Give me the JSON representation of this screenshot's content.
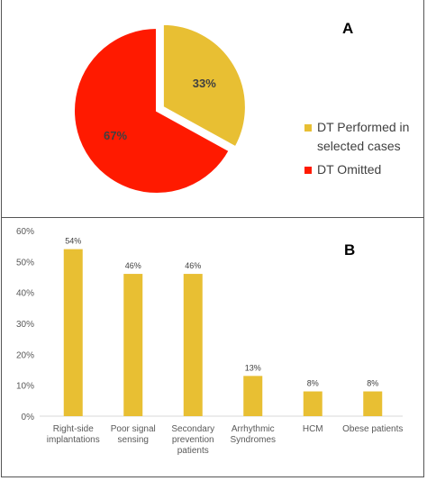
{
  "panel_a": {
    "letter": "A"
  },
  "panel_b": {
    "letter": "B"
  },
  "colors": {
    "performed": "#E8BF33",
    "omitted": "#FF1A00",
    "bar": "#E8BF33"
  },
  "chart_data": [
    {
      "type": "pie",
      "labels": [
        "DT Performed in selected cases",
        "DT Omitted"
      ],
      "legend_lines": [
        [
          "DT Performed in",
          "selected cases"
        ],
        [
          "DT Omitted"
        ]
      ],
      "values": [
        33,
        67
      ],
      "data_labels": [
        "33%",
        "67%"
      ],
      "colors": [
        "#E8BF33",
        "#FF1A00"
      ],
      "legend": "right",
      "exploded_slice": "DT Performed in selected cases"
    },
    {
      "type": "bar",
      "categories": [
        [
          "Right-side",
          "implantations"
        ],
        [
          "Poor signal",
          "sensing"
        ],
        [
          "Secondary",
          "prevention",
          "patients"
        ],
        [
          "Arrhythmic",
          "Syndromes"
        ],
        [
          "HCM"
        ],
        [
          "Obese patients"
        ]
      ],
      "values": [
        54,
        46,
        46,
        13,
        8,
        8
      ],
      "data_labels": [
        "54%",
        "46%",
        "46%",
        "13%",
        "8%",
        "8%"
      ],
      "ylim": [
        0,
        60
      ],
      "yticks": [
        "0%",
        "10%",
        "20%",
        "30%",
        "40%",
        "50%",
        "60%"
      ],
      "grid": false,
      "legend": "none"
    }
  ]
}
